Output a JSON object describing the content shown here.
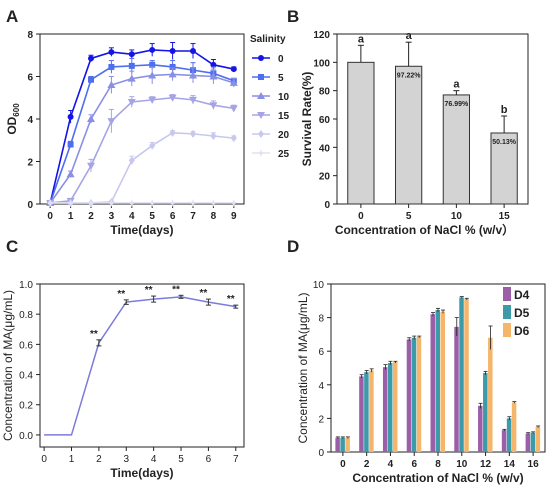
{
  "figure": {
    "panels": [
      {
        "letter": "A"
      },
      {
        "letter": "B"
      },
      {
        "letter": "C"
      },
      {
        "letter": "D"
      }
    ]
  },
  "chart_data": [
    {
      "panel": "A",
      "type": "line",
      "ylabel": "OD600",
      "ylabel_main": "OD",
      "ylabel_sub": "600",
      "xlabel": "Time(days)",
      "x": [
        0,
        1,
        2,
        3,
        4,
        5,
        6,
        7,
        8,
        9
      ],
      "xlim": [
        -0.5,
        9.5
      ],
      "ylim": [
        0,
        8
      ],
      "yticks": [
        0,
        2,
        4,
        6,
        8
      ],
      "legend_title": "Salinity",
      "legend_position": "right",
      "series": [
        {
          "name": "0",
          "color": "#1414e6",
          "marker": "circle",
          "values": [
            0.05,
            4.1,
            6.85,
            7.15,
            7.05,
            7.25,
            7.2,
            7.2,
            6.55,
            6.35
          ],
          "errors": [
            0,
            0.3,
            0.15,
            0.2,
            0.2,
            0.3,
            0.4,
            0.35,
            0.25,
            0.1
          ]
        },
        {
          "name": "5",
          "color": "#4d6ef0",
          "marker": "square",
          "values": [
            0.05,
            2.8,
            5.85,
            6.45,
            6.5,
            6.55,
            6.45,
            6.3,
            6.15,
            5.8
          ],
          "errors": [
            0,
            0.15,
            0.15,
            0.3,
            0.35,
            0.2,
            0.3,
            0.35,
            0.3,
            0.1
          ]
        },
        {
          "name": "10",
          "color": "#8a8fe6",
          "marker": "triangle",
          "values": [
            0.05,
            1.4,
            4.0,
            5.6,
            5.9,
            6.05,
            6.1,
            6.05,
            6.0,
            5.7
          ],
          "errors": [
            0,
            0.15,
            0.2,
            0.4,
            0.35,
            0.4,
            0.3,
            0.35,
            0.35,
            0.2
          ]
        },
        {
          "name": "15",
          "color": "#a5a5e6",
          "marker": "triangle-down",
          "values": [
            0.05,
            0.15,
            1.8,
            3.9,
            4.8,
            4.9,
            5.0,
            4.9,
            4.65,
            4.5
          ],
          "errors": [
            0,
            0.05,
            0.3,
            0.55,
            0.25,
            0.15,
            0.15,
            0.2,
            0.2,
            0.15
          ]
        },
        {
          "name": "20",
          "color": "#c8c8ee",
          "marker": "diamond",
          "values": [
            0.05,
            0.05,
            0.05,
            0.1,
            2.05,
            2.75,
            3.35,
            3.3,
            3.2,
            3.1
          ],
          "errors": [
            0,
            0,
            0,
            0,
            0.2,
            0.15,
            0.1,
            0.1,
            0.15,
            0.1
          ]
        },
        {
          "name": "25",
          "color": "#e0e0f4",
          "marker": "star",
          "values": [
            0.05,
            0.05,
            0.05,
            0.05,
            0.05,
            0.05,
            0.05,
            0.05,
            0.05,
            0.05
          ],
          "errors": [
            0,
            0,
            0,
            0,
            0,
            0,
            0,
            0,
            0,
            0
          ]
        }
      ]
    },
    {
      "panel": "B",
      "type": "bar",
      "ylabel": "Survival Rate(%)",
      "xlabel": "Concentration of NaCl % (w/v）",
      "categories": [
        "0",
        "5",
        "10",
        "15"
      ],
      "values": [
        100,
        97.22,
        76.99,
        50.13
      ],
      "errors": [
        12,
        17,
        3,
        12
      ],
      "bar_labels": [
        "",
        "97.22%",
        "76.99%",
        "50.13%"
      ],
      "letters": [
        "a",
        "a",
        "a",
        "b"
      ],
      "ylim": [
        0,
        120
      ],
      "yticks": [
        0,
        20,
        40,
        60,
        80,
        100,
        120
      ],
      "bar_color": "#d3d3d3"
    },
    {
      "panel": "C",
      "type": "line",
      "ylabel": "Concentration of  MA(μg/mL)",
      "xlabel": "Time(days)",
      "x": [
        0,
        1,
        2,
        3,
        4,
        5,
        6,
        7
      ],
      "values": [
        0,
        0,
        0.61,
        0.88,
        0.9,
        0.915,
        0.88,
        0.85
      ],
      "errors": [
        0,
        0,
        0.02,
        0.015,
        0.02,
        0.01,
        0.02,
        0.01
      ],
      "annotations": [
        "",
        "",
        "**",
        "**",
        "**",
        "**",
        "**",
        "**"
      ],
      "xlim": [
        -0.15,
        7.3
      ],
      "ylim": [
        -0.08,
        1.0
      ],
      "yticks": [
        0.0,
        0.2,
        0.4,
        0.6,
        0.8,
        1.0
      ],
      "color": "#7b7bdc"
    },
    {
      "panel": "D",
      "type": "bar",
      "ylabel": "Concentration of  MA(μg/mL)",
      "xlabel": "Concentration of NaCl % (w/v)",
      "categories": [
        "0",
        "2",
        "4",
        "6",
        "8",
        "10",
        "12",
        "14",
        "16"
      ],
      "ylim": [
        0,
        10
      ],
      "yticks": [
        0,
        2,
        4,
        6,
        8,
        10
      ],
      "legend_position": "top-right",
      "series": [
        {
          "name": "D4",
          "color": "#9b5fa8",
          "values": [
            0.85,
            4.5,
            5.05,
            6.7,
            8.2,
            7.45,
            2.75,
            1.3,
            1.1
          ],
          "errors": [
            0.05,
            0.1,
            0.15,
            0.1,
            0.1,
            0.55,
            0.15,
            0.05,
            0.05
          ]
        },
        {
          "name": "D5",
          "color": "#3d9aa8",
          "values": [
            0.85,
            4.75,
            5.3,
            6.8,
            8.45,
            9.2,
            4.7,
            2.0,
            1.15
          ],
          "errors": [
            0.05,
            0.1,
            0.1,
            0.1,
            0.1,
            0.05,
            0.1,
            0.1,
            0.05
          ]
        },
        {
          "name": "D6",
          "color": "#f5b56a",
          "values": [
            0.85,
            4.85,
            5.35,
            6.85,
            8.35,
            9.1,
            6.8,
            2.95,
            1.5
          ],
          "errors": [
            0.05,
            0.1,
            0.05,
            0.05,
            0.1,
            0.05,
            0.7,
            0.05,
            0.05
          ]
        }
      ]
    }
  ]
}
